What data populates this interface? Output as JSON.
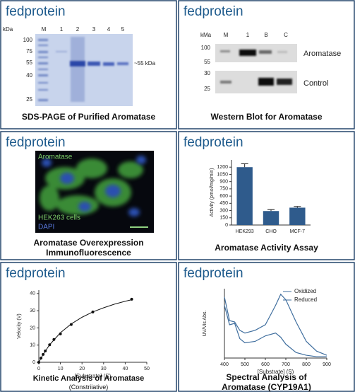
{
  "brand": "fedprotein",
  "sds_page": {
    "caption": "SDS-PAGE of Purified Aromatase",
    "unit": "kDa",
    "lanes": [
      "M",
      "1",
      "2",
      "3",
      "4",
      "5"
    ],
    "markers": [
      "100",
      "75",
      "55",
      "40",
      "25"
    ],
    "annotation": "~55 kDa"
  },
  "western_blot": {
    "caption": "Western Blot for Aromatase",
    "unit": "kMa",
    "lanes": [
      "M",
      "1",
      "B",
      "C"
    ],
    "markers": [
      "100",
      "55",
      "30",
      "25"
    ],
    "rows": [
      "Aromatase",
      "Control"
    ]
  },
  "immunofluorescence": {
    "caption": "Aromatase Overexpression Immunofluorescence",
    "labels": [
      "Aromatase",
      "HEK263 cells",
      "DAPI"
    ]
  },
  "chart_data": [
    {
      "type": "bar",
      "title": "Aromatase Activity Assay",
      "y_label": "Activity (pmol/mg/min)",
      "categories": [
        "HEK293",
        "CHO",
        "MCF-7"
      ],
      "values": [
        1200,
        290,
        360
      ],
      "errors": [
        70,
        30,
        25
      ],
      "color": "#2f5b8c",
      "ylim": [
        0,
        1350
      ],
      "yticks": [
        0,
        150,
        300,
        450,
        600,
        750,
        900,
        1050,
        1200
      ],
      "grid": false
    },
    {
      "type": "scatter",
      "title": "Kinetic Analysis of Aromatase",
      "subtitle": "(Constriiative)",
      "x_label": "[Substrate] (S)",
      "y_label": "Velocity (V)",
      "x": [
        0,
        1,
        2,
        3,
        5,
        7,
        10,
        15,
        25,
        43
      ],
      "values": [
        0,
        2.4,
        4.6,
        6.6,
        10.2,
        13.3,
        16.5,
        22,
        29.3,
        36.7
      ],
      "fit": {
        "x": [
          0,
          2,
          5,
          10,
          15,
          20,
          25,
          30,
          35,
          40,
          43
        ],
        "values": [
          0,
          4.58,
          10.2,
          17.2,
          22.3,
          26.2,
          29.3,
          31.7,
          33.8,
          35.5,
          36.4
        ]
      },
      "color": "#111111",
      "xlim": [
        0,
        50
      ],
      "ylim": [
        0,
        42
      ],
      "xticks": [
        0,
        10,
        20,
        30,
        40,
        50
      ],
      "yticks": [
        0,
        10,
        20,
        30,
        40
      ],
      "grid": false
    },
    {
      "type": "line",
      "title": "Spectral Analysis of Aromatase (CYP19A1)",
      "x_label": "[Substrate] (S)",
      "y_label": "UV/Vis Abs.",
      "x": [
        400,
        425,
        450,
        475,
        500,
        550,
        600,
        650,
        675,
        700,
        750,
        800,
        850,
        900
      ],
      "series": [
        {
          "name": "Oxidized",
          "color": "#3f6e9e",
          "values": [
            2.2,
            1.35,
            1.3,
            1.0,
            0.9,
            1.0,
            1.2,
            1.9,
            2.3,
            2.1,
            1.3,
            0.6,
            0.25,
            0.1
          ]
        },
        {
          "name": "Reduced",
          "color": "#3f6e9e",
          "values": [
            1.9,
            1.2,
            1.25,
            0.7,
            0.55,
            0.6,
            0.8,
            0.9,
            0.75,
            0.5,
            0.2,
            0.1,
            0.05,
            0.05
          ]
        }
      ],
      "xlim": [
        400,
        900
      ],
      "ylim": [
        0,
        2.5
      ],
      "xticks": [
        400,
        500,
        600,
        700,
        800,
        900
      ],
      "legend": "upper right",
      "grid": false
    }
  ]
}
